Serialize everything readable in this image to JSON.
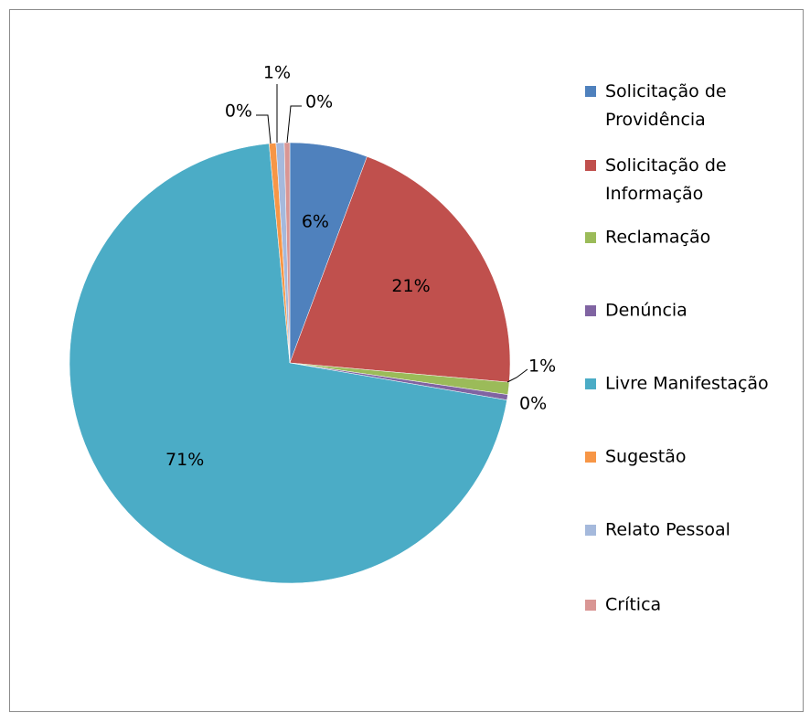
{
  "chart_data": {
    "type": "pie",
    "categories": [
      "Solicitação de Providência",
      "Solicitação de Informação",
      "Reclamação",
      "Denúncia",
      "Livre Manifestação",
      "Sugestão",
      "Relato Pessoal",
      "Crítica"
    ],
    "values": [
      5.7,
      20.7,
      0.9,
      0.4,
      70.8,
      0.5,
      0.6,
      0.4
    ],
    "value_labels": [
      "6%",
      "21%",
      "1%",
      "0%",
      "71%",
      "0%",
      "1%",
      "0%"
    ],
    "colors": [
      "#4f81bd",
      "#c0504d",
      "#9bbb59",
      "#8064a2",
      "#4bacc6",
      "#f79646",
      "#a5b9dc",
      "#d99694"
    ],
    "legend": "right"
  }
}
